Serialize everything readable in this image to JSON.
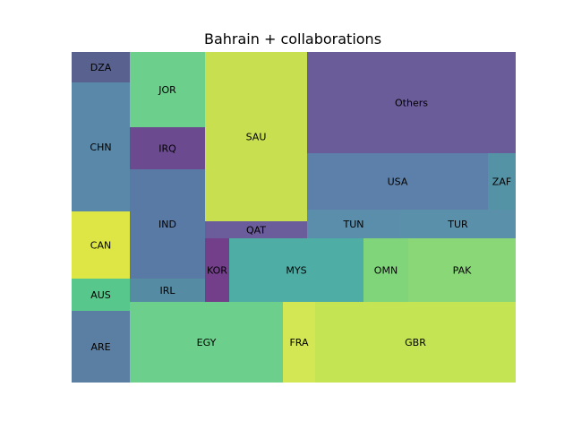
{
  "chart_data": {
    "type": "treemap",
    "title": "Bahrain + collaborations",
    "cells": [
      {
        "label": "DZA",
        "value": 65,
        "color": "#59628f"
      },
      {
        "label": "CHN",
        "value": 327,
        "color": "#5a88a8"
      },
      {
        "label": "CAN",
        "value": 169,
        "color": "#dde644"
      },
      {
        "label": "AUS",
        "value": 82,
        "color": "#58c78b"
      },
      {
        "label": "ARE",
        "value": 182,
        "color": "#5a7fa3"
      },
      {
        "label": "JOR",
        "value": 239,
        "color": "#6ccf8c"
      },
      {
        "label": "IRQ",
        "value": 133,
        "color": "#6b4a8f"
      },
      {
        "label": "IND",
        "value": 348,
        "color": "#5a7aa6"
      },
      {
        "label": "IRL",
        "value": 75,
        "color": "#568ca3"
      },
      {
        "label": "SAU",
        "value": 810,
        "color": "#c8e04f"
      },
      {
        "label": "QAT",
        "value": 81,
        "color": "#6b5c9b"
      },
      {
        "label": "Others",
        "value": 1022,
        "color": "#6a5b99"
      },
      {
        "label": "USA",
        "value": 561,
        "color": "#5c80a9"
      },
      {
        "label": "ZAF",
        "value": 85,
        "color": "#5492a6"
      },
      {
        "label": "TUN",
        "value": 164,
        "color": "#5b8eab"
      },
      {
        "label": "TUR",
        "value": 198,
        "color": "#5a90aa"
      },
      {
        "label": "KOR",
        "value": 68,
        "color": "#733f8a"
      },
      {
        "label": "MYS",
        "value": 358,
        "color": "#4eaea6"
      },
      {
        "label": "OMN",
        "value": 124,
        "color": "#80d57b"
      },
      {
        "label": "PAK",
        "value": 288,
        "color": "#8ad778"
      },
      {
        "label": "EGY",
        "value": 555,
        "color": "#6ccf8c"
      },
      {
        "label": "FRA",
        "value": 105,
        "color": "#d3e653"
      },
      {
        "label": "GBR",
        "value": 729,
        "color": "#c5e453"
      }
    ]
  }
}
